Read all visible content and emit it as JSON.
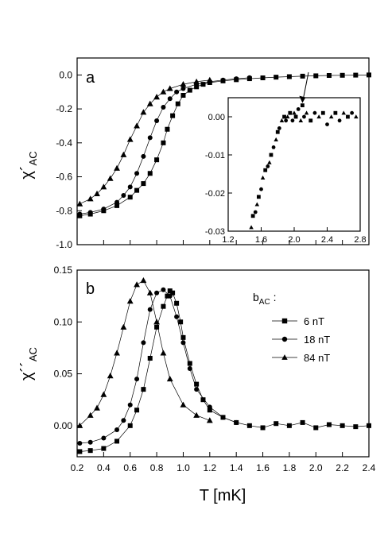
{
  "chart_data": [
    {
      "panel_label": "a",
      "type": "scatter",
      "ylabel": "χ´",
      "ylabel_sub": "AC",
      "xlim": [
        0.2,
        2.4
      ],
      "ylim": [
        -1.0,
        0.1
      ],
      "y_ticks": [
        "-1.0",
        "-0.8",
        "-0.6",
        "-0.4",
        "-0.2",
        "0.0"
      ],
      "y_tick_values": [
        -1.0,
        -0.8,
        -0.6,
        -0.4,
        -0.2,
        0.0
      ],
      "series": [
        {
          "marker": "square",
          "x": [
            0.22,
            0.3,
            0.4,
            0.5,
            0.6,
            0.65,
            0.7,
            0.75,
            0.8,
            0.85,
            0.88,
            0.92,
            0.96,
            1.0,
            1.05,
            1.1,
            1.15,
            1.2,
            1.3,
            1.4,
            1.5,
            1.6,
            1.7,
            1.8,
            1.9,
            2.0,
            2.1,
            2.2,
            2.3,
            2.4
          ],
          "y": [
            -0.83,
            -0.82,
            -0.8,
            -0.77,
            -0.72,
            -0.68,
            -0.64,
            -0.58,
            -0.5,
            -0.4,
            -0.32,
            -0.24,
            -0.17,
            -0.12,
            -0.09,
            -0.07,
            -0.055,
            -0.045,
            -0.035,
            -0.028,
            -0.022,
            -0.017,
            -0.013,
            -0.01,
            -0.007,
            -0.005,
            -0.003,
            -0.002,
            -0.001,
            0.0
          ]
        },
        {
          "marker": "circle",
          "x": [
            0.22,
            0.3,
            0.4,
            0.5,
            0.55,
            0.6,
            0.65,
            0.7,
            0.75,
            0.8,
            0.85,
            0.9,
            0.95,
            1.0,
            1.1,
            1.2,
            1.3,
            1.4,
            1.5
          ],
          "y": [
            -0.82,
            -0.81,
            -0.79,
            -0.75,
            -0.71,
            -0.66,
            -0.58,
            -0.48,
            -0.37,
            -0.27,
            -0.19,
            -0.14,
            -0.1,
            -0.08,
            -0.055,
            -0.04,
            -0.03,
            -0.022,
            -0.016
          ]
        },
        {
          "marker": "triangle",
          "x": [
            0.22,
            0.3,
            0.35,
            0.4,
            0.45,
            0.5,
            0.55,
            0.6,
            0.65,
            0.7,
            0.75,
            0.8,
            0.85,
            0.9,
            1.0,
            1.1,
            1.2
          ],
          "y": [
            -0.76,
            -0.73,
            -0.7,
            -0.66,
            -0.61,
            -0.55,
            -0.47,
            -0.38,
            -0.3,
            -0.22,
            -0.17,
            -0.13,
            -0.1,
            -0.08,
            -0.055,
            -0.04,
            -0.03
          ]
        }
      ],
      "inset": {
        "xlim": [
          1.2,
          2.8
        ],
        "ylim": [
          -0.03,
          0.005
        ],
        "x_ticks": [
          "1.2",
          "1.6",
          "2.0",
          "2.4",
          "2.8"
        ],
        "x_tick_values": [
          1.2,
          1.6,
          2.0,
          2.4,
          2.8
        ],
        "y_ticks": [
          "-0.03",
          "-0.02",
          "-0.01",
          "0.00"
        ],
        "y_tick_values": [
          -0.03,
          -0.02,
          -0.01,
          0.0
        ],
        "arrow_target": {
          "x": 2.1,
          "y": 0.003
        },
        "points": [
          [
            1.48,
            -0.029
          ],
          [
            1.5,
            -0.026
          ],
          [
            1.53,
            -0.025
          ],
          [
            1.55,
            -0.023
          ],
          [
            1.57,
            -0.021
          ],
          [
            1.6,
            -0.019
          ],
          [
            1.62,
            -0.016
          ],
          [
            1.65,
            -0.014
          ],
          [
            1.68,
            -0.013
          ],
          [
            1.7,
            -0.012
          ],
          [
            1.72,
            -0.01
          ],
          [
            1.75,
            -0.008
          ],
          [
            1.78,
            -0.006
          ],
          [
            1.8,
            -0.004
          ],
          [
            1.82,
            -0.003
          ],
          [
            1.85,
            -0.001
          ],
          [
            1.88,
            0.0
          ],
          [
            1.9,
            -0.001
          ],
          [
            1.92,
            0.0
          ],
          [
            1.95,
            0.001
          ],
          [
            1.98,
            -0.001
          ],
          [
            2.0,
            0.001
          ],
          [
            2.02,
            0.0
          ],
          [
            2.05,
            0.002
          ],
          [
            2.08,
            -0.001
          ],
          [
            2.1,
            0.003
          ],
          [
            2.12,
            0.0
          ],
          [
            2.15,
            0.001
          ],
          [
            2.2,
            -0.001
          ],
          [
            2.25,
            0.001
          ],
          [
            2.3,
            0.0
          ],
          [
            2.35,
            0.001
          ],
          [
            2.4,
            -0.002
          ],
          [
            2.45,
            0.0
          ],
          [
            2.5,
            0.001
          ],
          [
            2.55,
            -0.001
          ],
          [
            2.6,
            0.001
          ],
          [
            2.65,
            0.0
          ],
          [
            2.7,
            0.001
          ],
          [
            2.75,
            0.0
          ]
        ]
      }
    },
    {
      "panel_label": "b",
      "type": "scatter",
      "ylabel": "χ´´",
      "ylabel_sub": "AC",
      "xlabel": "T [mK]",
      "xlim": [
        0.2,
        2.4
      ],
      "ylim": [
        -0.03,
        0.15
      ],
      "x_ticks": [
        "0.2",
        "0.4",
        "0.6",
        "0.8",
        "1.0",
        "1.2",
        "1.4",
        "1.6",
        "1.8",
        "2.0",
        "2.2",
        "2.4"
      ],
      "x_tick_values": [
        0.2,
        0.4,
        0.6,
        0.8,
        1.0,
        1.2,
        1.4,
        1.6,
        1.8,
        2.0,
        2.2,
        2.4
      ],
      "y_ticks": [
        "0.00",
        "0.05",
        "0.10",
        "0.15"
      ],
      "y_tick_values": [
        0.0,
        0.05,
        0.1,
        0.15
      ],
      "legend_title": "b",
      "legend_title_sub": "AC",
      "legend_title_suffix": " :",
      "legend_position": "top-right",
      "series": [
        {
          "name": "6 nT",
          "marker": "square",
          "x": [
            0.22,
            0.3,
            0.4,
            0.5,
            0.6,
            0.65,
            0.7,
            0.75,
            0.8,
            0.85,
            0.88,
            0.9,
            0.92,
            0.95,
            0.98,
            1.0,
            1.05,
            1.1,
            1.15,
            1.2,
            1.3,
            1.4,
            1.5,
            1.6,
            1.7,
            1.8,
            1.9,
            2.0,
            2.1,
            2.2,
            2.3,
            2.4
          ],
          "y": [
            -0.025,
            -0.024,
            -0.022,
            -0.015,
            0.0,
            0.015,
            0.035,
            0.065,
            0.095,
            0.115,
            0.125,
            0.13,
            0.128,
            0.118,
            0.1,
            0.085,
            0.06,
            0.04,
            0.025,
            0.015,
            0.008,
            0.003,
            0.0,
            -0.002,
            0.002,
            0.0,
            0.003,
            -0.002,
            0.001,
            0.0,
            -0.001,
            0.0
          ]
        },
        {
          "name": "18 nT",
          "marker": "circle",
          "x": [
            0.22,
            0.3,
            0.4,
            0.5,
            0.55,
            0.6,
            0.65,
            0.7,
            0.75,
            0.8,
            0.85,
            0.9,
            0.95,
            1.0,
            1.05,
            1.1,
            1.2,
            1.3,
            1.4
          ],
          "y": [
            -0.017,
            -0.016,
            -0.012,
            -0.004,
            0.005,
            0.02,
            0.045,
            0.08,
            0.112,
            0.128,
            0.131,
            0.125,
            0.105,
            0.08,
            0.055,
            0.035,
            0.018,
            0.008,
            0.003
          ]
        },
        {
          "name": "84 nT",
          "marker": "triangle",
          "x": [
            0.22,
            0.3,
            0.35,
            0.4,
            0.45,
            0.5,
            0.55,
            0.6,
            0.65,
            0.7,
            0.75,
            0.8,
            0.85,
            0.9,
            1.0,
            1.1,
            1.2
          ],
          "y": [
            0.0,
            0.01,
            0.017,
            0.03,
            0.048,
            0.07,
            0.095,
            0.12,
            0.136,
            0.14,
            0.128,
            0.1,
            0.07,
            0.045,
            0.02,
            0.01,
            0.005
          ]
        }
      ]
    }
  ]
}
